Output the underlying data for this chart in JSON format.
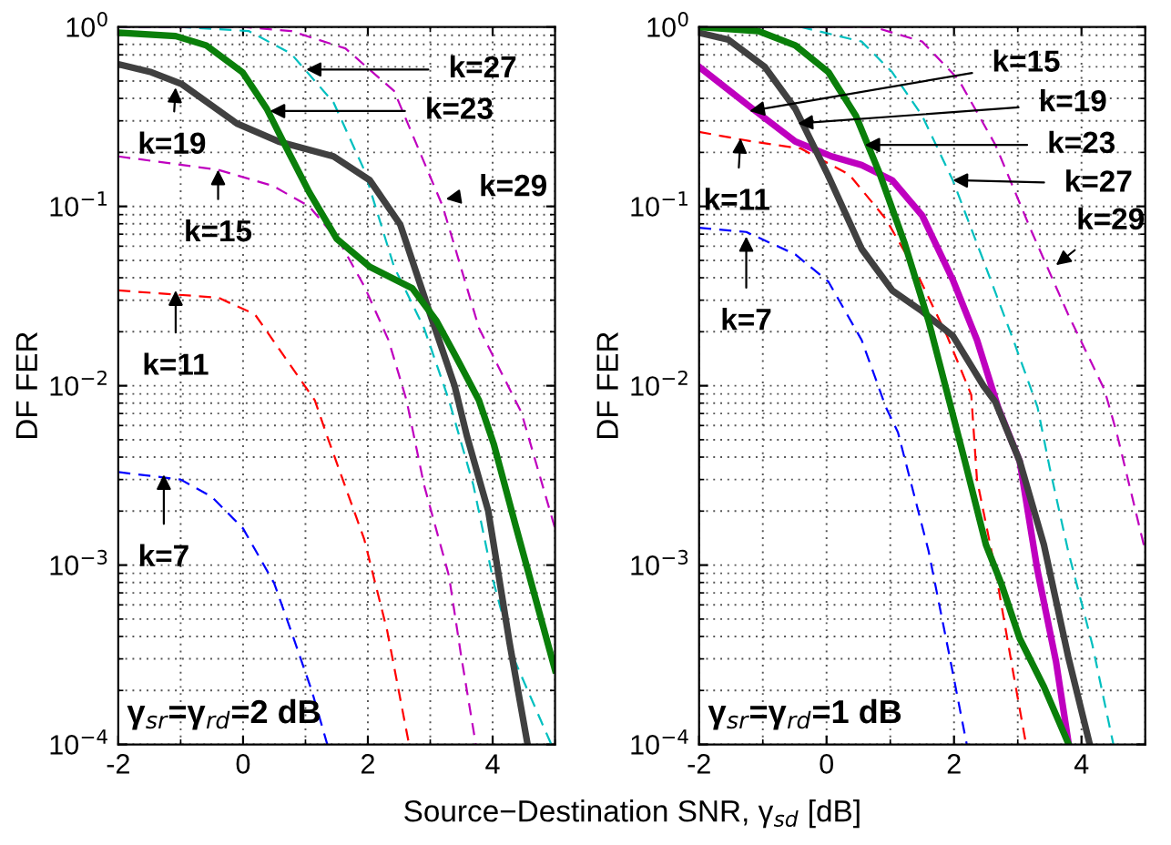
{
  "chart_data": [
    {
      "type": "line",
      "ylabel": "DF FER",
      "xlabel": "Source−Destination SNR, γ$_{sd}$ [dB]",
      "log": true,
      "grid": true,
      "xlim": [
        -2,
        5
      ],
      "xticks": [
        -2,
        0,
        2,
        4
      ],
      "ylim": [
        0.0001,
        1
      ],
      "yticks": [
        {
          "value": 0.0001,
          "label": "10$^{−4}$"
        },
        {
          "value": 0.001,
          "label": "10$^{−3}$"
        },
        {
          "value": 0.01,
          "label": "10$^{−2}$"
        },
        {
          "value": 0.1,
          "label": "10$^{−1}$"
        },
        {
          "value": 1,
          "label": "10$^{0}$"
        }
      ],
      "series": [
        {
          "color": "#0000ff",
          "line_style": "dashed",
          "x": [
            -2,
            -1,
            -0.5,
            0,
            0.5,
            0.8,
            1.1,
            1.35
          ],
          "values": [
            0.0033,
            0.003,
            0.0024,
            0.0016,
            0.00079,
            0.0004,
            0.0002,
            0.0001
          ]
        },
        {
          "color": "#ff0000",
          "line_style": "dashed",
          "x": [
            -2,
            -0.4,
            0.19,
            1.15,
            1.35,
            1.94,
            2.31,
            2.66
          ],
          "values": [
            0.034,
            0.031,
            0.025,
            0.0083,
            0.0052,
            0.0014,
            0.00043,
            0.0001
          ]
        },
        {
          "color": "#bf00bf",
          "line_style": "dashed",
          "x": [
            -2,
            -0.4,
            0.48,
            1.06,
            1.55,
            1.94,
            2.33,
            2.62,
            2.9,
            3.3,
            3.49,
            3.73
          ],
          "values": [
            0.19,
            0.16,
            0.13,
            0.1,
            0.063,
            0.036,
            0.018,
            0.0083,
            0.0028,
            0.00087,
            0.00032,
            0.0001
          ]
        },
        {
          "color": "#00bfbf",
          "line_style": "dashed",
          "x": [
            -2,
            -1,
            0.09,
            0.77,
            1.45,
            1.94,
            2.42,
            2.9,
            3.3,
            3.69,
            4.02,
            4.36,
            4.94
          ],
          "values": [
            1,
            1,
            0.95,
            0.71,
            0.38,
            0.16,
            0.046,
            0.021,
            0.0083,
            0.0028,
            0.00079,
            0.00029,
            0.0001
          ]
        },
        {
          "color": "#bf00bf",
          "line_style": "dashed",
          "x": [
            -2,
            0,
            0.77,
            1.64,
            2.42,
            3.2,
            3.78,
            4.46,
            5
          ],
          "values": [
            1,
            1,
            0.95,
            0.76,
            0.44,
            0.1,
            0.021,
            0.0071,
            0.0016
          ]
        },
        {
          "color": "#404040",
          "line_style": "solid",
          "x": [
            -2,
            -1.47,
            -0.98,
            -0.1,
            0.57,
            1.45,
            2.03,
            2.52,
            3.0,
            3.39,
            3.59,
            3.93,
            4.07,
            4.27,
            4.56
          ],
          "values": [
            0.62,
            0.56,
            0.48,
            0.29,
            0.23,
            0.19,
            0.14,
            0.079,
            0.025,
            0.01,
            0.0052,
            0.002,
            0.001,
            0.00037,
            0.0001
          ]
        },
        {
          "color": "#0a7f0a",
          "line_style": "solid",
          "x": [
            -2,
            -1.08,
            -0.59,
            -0.01,
            0.38,
            0.67,
            1.06,
            1.5,
            2.03,
            2.71,
            3.1,
            3.39,
            3.78,
            4.02,
            4.36,
            5
          ],
          "values": [
            0.93,
            0.89,
            0.79,
            0.56,
            0.35,
            0.22,
            0.12,
            0.066,
            0.046,
            0.035,
            0.023,
            0.015,
            0.0083,
            0.0047,
            0.0017,
            0.00026
          ]
        }
      ],
      "annotations": [
        {
          "text": "k=27",
          "x": 1.01,
          "y": 0.58
        },
        {
          "text": "k=23",
          "x": 0.43,
          "y": 0.34
        },
        {
          "text": "k=19",
          "x": -1.08,
          "y": 0.46
        },
        {
          "text": "k=15",
          "x": -0.4,
          "y": 0.16
        },
        {
          "text": "k=11",
          "x": -1.08,
          "y": 0.034
        },
        {
          "text": "k=7",
          "x": -1.27,
          "y": 0.0032
        },
        {
          "text": "k=29",
          "x": 3.25,
          "y": 0.11
        },
        "γ$_{sr}$=γ$_{rd}$=2 dB"
      ]
    },
    {
      "type": "line",
      "ylabel": "DF FER",
      "log": true,
      "grid": true,
      "xlim": [
        -2,
        5
      ],
      "xticks": [
        -2,
        0,
        2,
        4
      ],
      "ylim": [
        0.0001,
        1
      ],
      "yticks": [
        {
          "value": 0.0001,
          "label": "10$^{−4}$"
        },
        {
          "value": 0.001,
          "label": "10$^{−3}$"
        },
        {
          "value": 0.01,
          "label": "10$^{−2}$"
        },
        {
          "value": 0.1,
          "label": "10$^{−1}$"
        },
        {
          "value": 1,
          "label": "10$^{0}$"
        }
      ],
      "series": [
        {
          "color": "#0000ff",
          "line_style": "dashed",
          "x": [
            -2,
            -1.26,
            -0.49,
            0.03,
            0.55,
            0.93,
            1.12,
            1.6,
            1.93,
            2.2
          ],
          "values": [
            0.076,
            0.072,
            0.054,
            0.038,
            0.018,
            0.0076,
            0.0055,
            0.0012,
            0.00031,
            0.0001
          ]
        },
        {
          "color": "#ff0000",
          "line_style": "dashed",
          "x": [
            -2,
            -1.16,
            -0.4,
            0.36,
            0.93,
            1.41,
            1.89,
            2.27,
            2.36,
            2.65,
            2.93,
            3.13
          ],
          "values": [
            0.26,
            0.23,
            0.21,
            0.15,
            0.085,
            0.043,
            0.019,
            0.0089,
            0.003,
            0.00093,
            0.00025,
            0.0001
          ]
        },
        {
          "color": "#00bfbf",
          "line_style": "dashed",
          "x": [
            -2,
            -0.4,
            0.55,
            1.03,
            1.5,
            1.98,
            2.46,
            2.93,
            3.31,
            3.5,
            3.79,
            4.17,
            4.5
          ],
          "values": [
            1,
            1,
            0.83,
            0.56,
            0.32,
            0.14,
            0.05,
            0.018,
            0.0076,
            0.0035,
            0.0012,
            0.00036,
            0.0001
          ]
        },
        {
          "color": "#bf00bf",
          "line_style": "dashed",
          "x": [
            -2,
            0.74,
            1.5,
            2.07,
            2.65,
            3.22,
            3.79,
            4.36,
            4.55,
            5
          ],
          "values": [
            1,
            1,
            0.83,
            0.51,
            0.22,
            0.072,
            0.025,
            0.0095,
            0.0055,
            0.0012
          ]
        },
        {
          "color": "#bf00bf",
          "line_style": "solid",
          "x": [
            -2,
            -1.16,
            -0.49,
            0.08,
            0.55,
            1.03,
            1.5,
            1.98,
            2.36,
            2.69,
            3.03,
            3.31,
            3.6,
            3.8
          ],
          "values": [
            0.6,
            0.35,
            0.23,
            0.19,
            0.17,
            0.14,
            0.089,
            0.039,
            0.018,
            0.0076,
            0.0038,
            0.00093,
            0.00029,
            0.0001
          ]
        },
        {
          "color": "#404040",
          "line_style": "solid",
          "x": [
            -2,
            -1.54,
            -0.97,
            -0.49,
            0.02,
            0.55,
            1.03,
            1.5,
            1.98,
            2.46,
            2.65,
            3.03,
            3.41,
            3.79,
            4.13
          ],
          "values": [
            0.93,
            0.85,
            0.6,
            0.35,
            0.15,
            0.058,
            0.034,
            0.026,
            0.019,
            0.01,
            0.0081,
            0.0038,
            0.0013,
            0.00031,
            0.0001
          ]
        },
        {
          "color": "#0a7f0a",
          "line_style": "solid",
          "x": [
            -2,
            -1.07,
            -0.49,
            0.03,
            0.46,
            0.84,
            1.22,
            1.6,
            1.93,
            2.17,
            2.5,
            2.74,
            3.03,
            3.41,
            3.8
          ],
          "values": [
            1,
            0.95,
            0.79,
            0.56,
            0.32,
            0.15,
            0.063,
            0.023,
            0.0081,
            0.0038,
            0.0013,
            0.00079,
            0.00039,
            0.00021,
            0.0001
          ]
        }
      ],
      "annotations": [
        {
          "text": "k=15",
          "x": -1.21,
          "y": 0.34
        },
        {
          "text": "k=19",
          "x": -0.45,
          "y": 0.29
        },
        {
          "text": "k=23",
          "x": 0.6,
          "y": 0.22
        },
        {
          "text": "k=27",
          "x": 1.98,
          "y": 0.14
        },
        {
          "text": "k=29",
          "x": 3.6,
          "y": 0.047
        },
        {
          "text": "k=11",
          "x": -1.35,
          "y": 0.24
        },
        {
          "text": "k=7",
          "x": -1.26,
          "y": 0.068
        },
        "γ$_{sr}$=γ$_{rd}$=1 dB"
      ]
    }
  ]
}
